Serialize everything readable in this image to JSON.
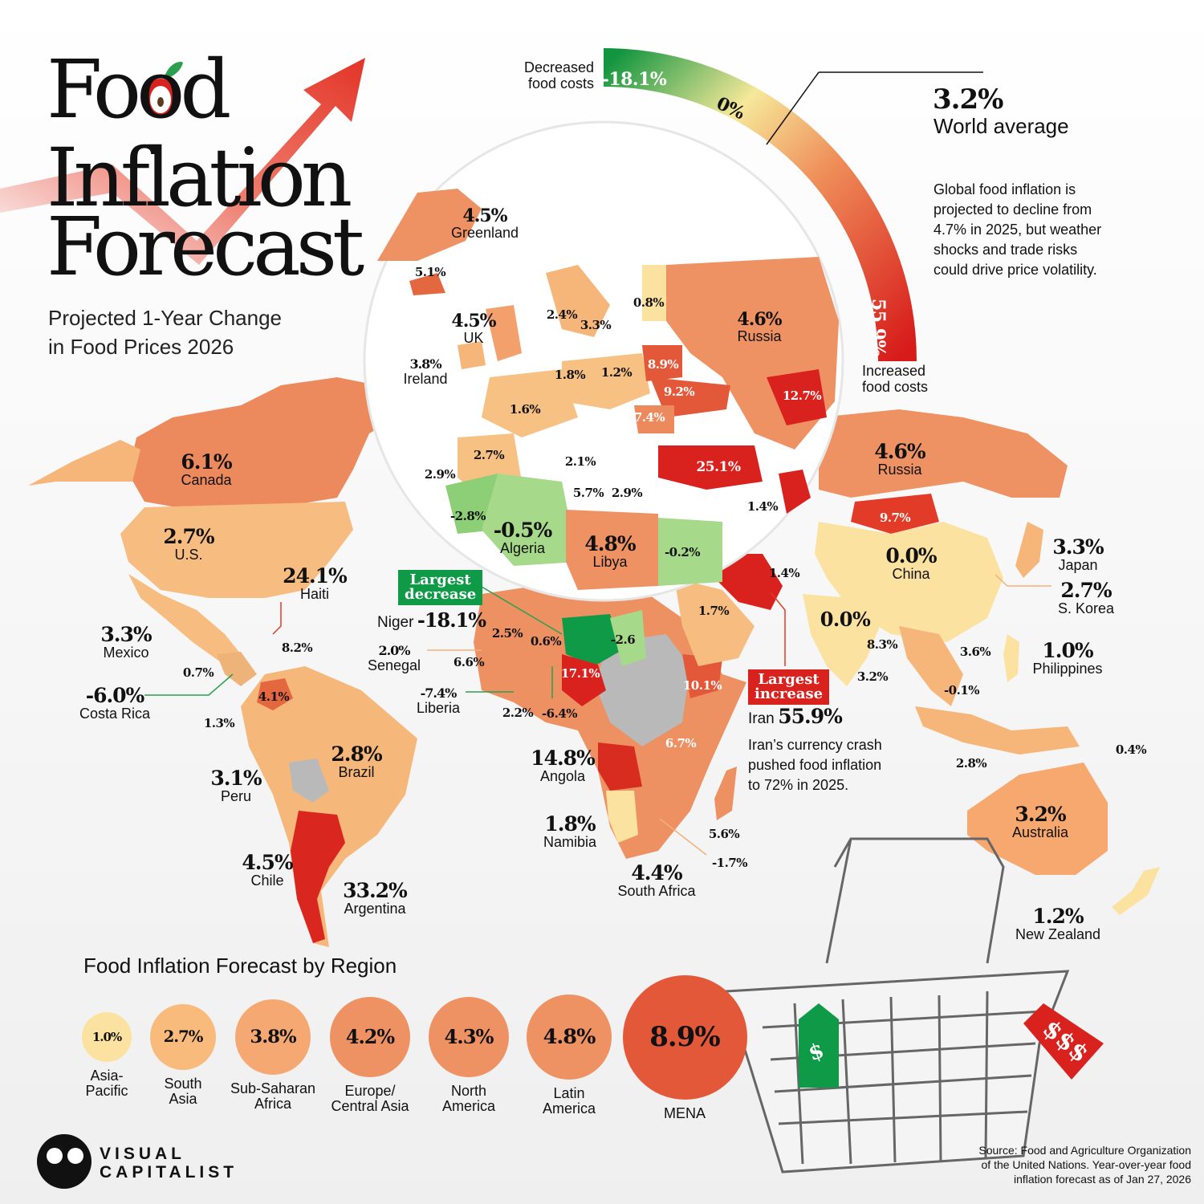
{
  "title": {
    "line1": "Food",
    "line2": "Inflation",
    "line3": "Forecast"
  },
  "subtitle": {
    "line1": "Projected 1-Year Change",
    "line2": "in Food Prices 2026"
  },
  "scale": {
    "low_label_1": "Decreased",
    "low_label_2": "food costs",
    "min": "-18.1%",
    "mid": "0%",
    "max": "55.9%",
    "high_label_1": "Increased",
    "high_label_2": "food costs"
  },
  "world": {
    "value": "3.2%",
    "label": "World average"
  },
  "description": [
    "Global food inflation is",
    "projected to decline from",
    "4.7% in 2025, but weather",
    "shocks and trade risks",
    "could drive price volatility."
  ],
  "countries": [
    {
      "key": "canada",
      "name": "Canada",
      "value": "6.1%"
    },
    {
      "key": "us",
      "name": "U.S.",
      "value": "2.7%"
    },
    {
      "key": "mexico",
      "name": "Mexico",
      "value": "3.3%"
    },
    {
      "key": "haiti",
      "name": "Haiti",
      "value": "24.1%"
    },
    {
      "key": "costa_rica",
      "name": "Costa Rica",
      "value": "-6.0%"
    },
    {
      "key": "peru",
      "name": "Peru",
      "value": "3.1%"
    },
    {
      "key": "brazil",
      "name": "Brazil",
      "value": "2.8%"
    },
    {
      "key": "chile",
      "name": "Chile",
      "value": "4.5%"
    },
    {
      "key": "argentina",
      "name": "Argentina",
      "value": "33.2%"
    },
    {
      "key": "greenland",
      "name": "Greenland",
      "value": "4.5%"
    },
    {
      "key": "uk",
      "name": "UK",
      "value": "4.5%"
    },
    {
      "key": "ireland",
      "name": "Ireland",
      "value": "3.8%"
    },
    {
      "key": "russia_inset",
      "name": "Russia",
      "value": "4.6%"
    },
    {
      "key": "russia",
      "name": "Russia",
      "value": "4.6%"
    },
    {
      "key": "algeria",
      "name": "Algeria",
      "value": "-0.5%"
    },
    {
      "key": "libya",
      "name": "Libya",
      "value": "4.8%"
    },
    {
      "key": "senegal",
      "name": "Senegal",
      "value": "2.0%"
    },
    {
      "key": "liberia",
      "name": "Liberia",
      "value": "-7.4%"
    },
    {
      "key": "angola",
      "name": "Angola",
      "value": "14.8%"
    },
    {
      "key": "namibia",
      "name": "Namibia",
      "value": "1.8%"
    },
    {
      "key": "south_africa",
      "name": "South Africa",
      "value": "4.4%"
    },
    {
      "key": "china",
      "name": "China",
      "value": "0.0%"
    },
    {
      "key": "japan",
      "name": "Japan",
      "value": "3.3%"
    },
    {
      "key": "s_korea",
      "name": "S. Korea",
      "value": "2.7%"
    },
    {
      "key": "philippines",
      "name": "Philippines",
      "value": "1.0%"
    },
    {
      "key": "australia",
      "name": "Australia",
      "value": "3.2%"
    },
    {
      "key": "new_zealand",
      "name": "New Zealand",
      "value": "1.2%"
    }
  ],
  "small_values": [
    {
      "key": "iceland",
      "value": "5.1%"
    },
    {
      "key": "norway",
      "value": "2.4%"
    },
    {
      "key": "sweden",
      "value": "3.3%"
    },
    {
      "key": "finland",
      "value": "0.8%"
    },
    {
      "key": "germany",
      "value": "1.8%"
    },
    {
      "key": "poland",
      "value": "1.2%"
    },
    {
      "key": "belarus",
      "value": "8.9%"
    },
    {
      "key": "ukraine",
      "value": "9.2%"
    },
    {
      "key": "kazakhstan",
      "value": "12.7%"
    },
    {
      "key": "france",
      "value": "1.6%"
    },
    {
      "key": "romania",
      "value": "7.4%"
    },
    {
      "key": "spain",
      "value": "2.7%"
    },
    {
      "key": "portugal",
      "value": "2.9%"
    },
    {
      "key": "italy",
      "value": "2.1%"
    },
    {
      "key": "turkey",
      "value": "25.1%"
    },
    {
      "key": "tunisia",
      "value": "5.7%"
    },
    {
      "key": "greece",
      "value": "2.9%"
    },
    {
      "key": "morocco",
      "value": "-2.8%"
    },
    {
      "key": "saudi",
      "value": "1.4%"
    },
    {
      "key": "mongolia",
      "value": "9.7%"
    },
    {
      "key": "egypt",
      "value": "-0.2%"
    },
    {
      "key": "uae",
      "value": "1.4%"
    },
    {
      "key": "yemen",
      "value": "1.7%"
    },
    {
      "key": "india",
      "value": "0.0%"
    },
    {
      "key": "myanmar",
      "value": "8.3%"
    },
    {
      "key": "sri_lanka",
      "value": "3.2%"
    },
    {
      "key": "vietnam",
      "value": "3.6%"
    },
    {
      "key": "malaysia",
      "value": "-0.1%"
    },
    {
      "key": "png",
      "value": "0.4%"
    },
    {
      "key": "indonesia",
      "value": "2.8%"
    },
    {
      "key": "dominican",
      "value": "8.2%"
    },
    {
      "key": "el_salvador",
      "value": "0.7%"
    },
    {
      "key": "ecuador",
      "value": "1.3%"
    },
    {
      "key": "colombia",
      "value": "4.1%"
    },
    {
      "key": "mali",
      "value": "2.5%"
    },
    {
      "key": "burkina",
      "value": "0.6%"
    },
    {
      "key": "chad",
      "value": "-2.6"
    },
    {
      "key": "guinea",
      "value": "6.6%"
    },
    {
      "key": "nigeria",
      "value": "17.1%"
    },
    {
      "key": "ethiopia",
      "value": "10.1%"
    },
    {
      "key": "ghana",
      "value": "2.2%"
    },
    {
      "key": "togo",
      "value": "-6.4%"
    },
    {
      "key": "tanzania",
      "value": "6.7%"
    },
    {
      "key": "madagascar",
      "value": "5.6%"
    },
    {
      "key": "zimbabwe",
      "value": "-1.7%"
    }
  ],
  "callouts": {
    "decrease": {
      "tag1": "Largest",
      "tag2": "decrease",
      "country": "Niger",
      "value": "-18.1%"
    },
    "increase": {
      "tag1": "Largest",
      "tag2": "increase",
      "country": "Iran",
      "value": "55.9%",
      "note": [
        "Iran’s currency crash",
        "pushed food inflation",
        "to 72% in 2025."
      ]
    }
  },
  "regions": {
    "title": "Food Inflation Forecast by Region",
    "items": [
      {
        "name1": "Asia-",
        "name2": "Pacific",
        "value": "1.0%",
        "amount": 1.0
      },
      {
        "name1": "South",
        "name2": "Asia",
        "value": "2.7%",
        "amount": 2.7
      },
      {
        "name1": "Sub-Saharan",
        "name2": "Africa",
        "value": "3.8%",
        "amount": 3.8
      },
      {
        "name1": "Europe/",
        "name2": "Central Asia",
        "value": "4.2%",
        "amount": 4.2
      },
      {
        "name1": "North",
        "name2": "America",
        "value": "4.3%",
        "amount": 4.3
      },
      {
        "name1": "Latin",
        "name2": "America",
        "value": "4.8%",
        "amount": 4.8
      },
      {
        "name1": "MENA",
        "name2": "",
        "value": "8.9%",
        "amount": 8.9
      }
    ]
  },
  "tags": {
    "green": "$",
    "red": "$$$"
  },
  "brand": {
    "line1": "VISUAL",
    "line2": "CAPITALIST"
  },
  "source": [
    "Source: Food and Agriculture Organization",
    "of the United Nations. Year-over-year food",
    "inflation forecast as of Jan 27, 2026"
  ],
  "colors": {
    "deep_green": "#0f9a47",
    "light_green": "#a6d989",
    "pale": "#fbe2a0",
    "light_orange": "#f8bb7c",
    "orange": "#ef9263",
    "red_orange": "#e4583a",
    "red": "#d9211e",
    "grey": "#b9b9b9"
  }
}
